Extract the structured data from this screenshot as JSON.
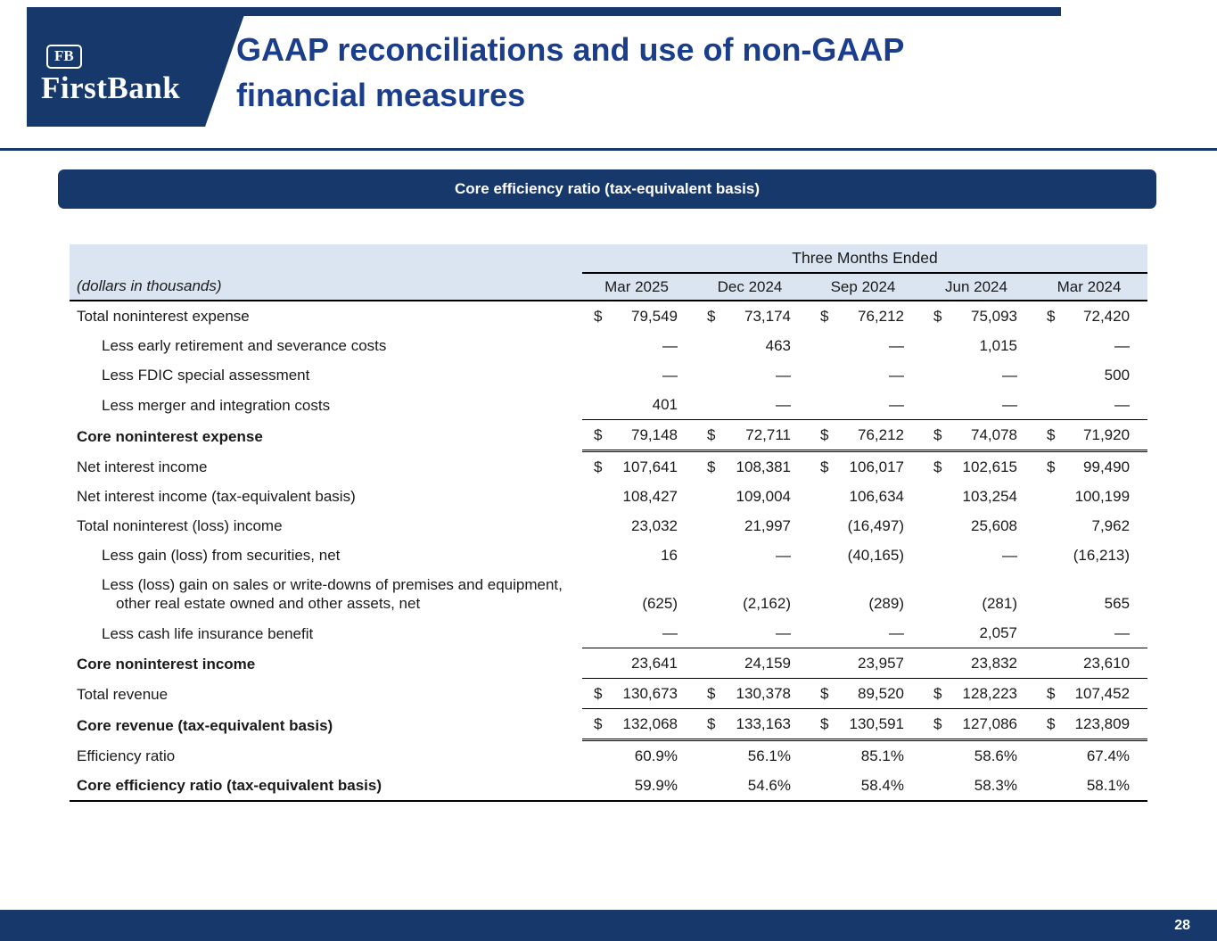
{
  "slide": {
    "logo": {
      "monogram": "FB",
      "brand": "FirstBank"
    },
    "title_line1": "GAAP reconciliations and use of non-GAAP",
    "title_line2": "financial measures",
    "page_number": "28"
  },
  "banner": {
    "label": "Core efficiency ratio (tax-equivalent basis)"
  },
  "colors": {
    "navy": "#17386b",
    "title_blue": "#1b3e8c",
    "table_header_bg": "#dbe5f1"
  },
  "table": {
    "group_header": "Three Months Ended",
    "units_label": "(dollars in thousands)",
    "columns": [
      "Mar 2025",
      "Dec 2024",
      "Sep 2024",
      "Jun 2024",
      "Mar 2024"
    ],
    "rows": [
      {
        "label": "Total noninterest expense",
        "indent": 0,
        "bold": false,
        "rule": "none",
        "values": [
          "$79,549",
          "$73,174",
          "$76,212",
          "$75,093",
          "$72,420"
        ]
      },
      {
        "label": "Less early retirement and severance costs",
        "indent": 1,
        "bold": false,
        "rule": "none",
        "values": [
          "—",
          "463",
          "—",
          "1,015",
          "—"
        ]
      },
      {
        "label": "Less FDIC special assessment",
        "indent": 1,
        "bold": false,
        "rule": "none",
        "values": [
          "—",
          "—",
          "—",
          "—",
          "500"
        ]
      },
      {
        "label": "Less merger and integration costs",
        "indent": 1,
        "bold": false,
        "rule": "single",
        "values": [
          "401",
          "—",
          "—",
          "—",
          "—"
        ]
      },
      {
        "label": "Core noninterest expense",
        "indent": 0,
        "bold": true,
        "rule": "double",
        "values": [
          "$79,148",
          "$72,711",
          "$76,212",
          "$74,078",
          "$71,920"
        ]
      },
      {
        "label": "Net interest income",
        "indent": 0,
        "bold": false,
        "rule": "none",
        "values": [
          "$107,641",
          "$108,381",
          "$106,017",
          "$102,615",
          "$99,490"
        ]
      },
      {
        "label": "Net interest income (tax-equivalent basis)",
        "indent": 0,
        "bold": false,
        "rule": "none",
        "values": [
          "108,427",
          "109,004",
          "106,634",
          "103,254",
          "100,199"
        ]
      },
      {
        "label": "Total noninterest (loss) income",
        "indent": 0,
        "bold": false,
        "rule": "none",
        "values": [
          "23,032",
          "21,997",
          "(16,497)",
          "25,608",
          "7,962"
        ]
      },
      {
        "label": "Less gain (loss) from securities, net",
        "indent": 1,
        "bold": false,
        "rule": "none",
        "values": [
          "16",
          "—",
          "(40,165)",
          "—",
          "(16,213)"
        ]
      },
      {
        "label": "Less (loss) gain on sales or write-downs of premises and equipment, other real estate owned and other assets, net",
        "indent": 1,
        "bold": false,
        "hang": true,
        "rule": "none",
        "values": [
          "(625)",
          "(2,162)",
          "(289)",
          "(281)",
          "565"
        ]
      },
      {
        "label": "Less cash life insurance benefit",
        "indent": 1,
        "bold": false,
        "rule": "single",
        "values": [
          "—",
          "—",
          "—",
          "2,057",
          "—"
        ]
      },
      {
        "label": "Core noninterest income",
        "indent": 0,
        "bold": true,
        "rule": "single",
        "values": [
          "23,641",
          "24,159",
          "23,957",
          "23,832",
          "23,610"
        ]
      },
      {
        "label": "Total revenue",
        "indent": 0,
        "bold": false,
        "rule": "single",
        "values": [
          "$130,673",
          "$130,378",
          "$89,520",
          "$128,223",
          "$107,452"
        ]
      },
      {
        "label": "Core revenue (tax-equivalent basis)",
        "indent": 0,
        "bold": true,
        "rule": "double",
        "values": [
          "$132,068",
          "$133,163",
          "$130,591",
          "$127,086",
          "$123,809"
        ]
      },
      {
        "label": "Efficiency ratio",
        "indent": 0,
        "bold": false,
        "rule": "none",
        "values": [
          "60.9%",
          "56.1%",
          "85.1%",
          "58.6%",
          "67.4%"
        ]
      },
      {
        "label": "Core efficiency ratio (tax-equivalent basis)",
        "indent": 0,
        "bold": true,
        "rule": "none",
        "values": [
          "59.9%",
          "54.6%",
          "58.4%",
          "58.3%",
          "58.1%"
        ]
      }
    ]
  }
}
